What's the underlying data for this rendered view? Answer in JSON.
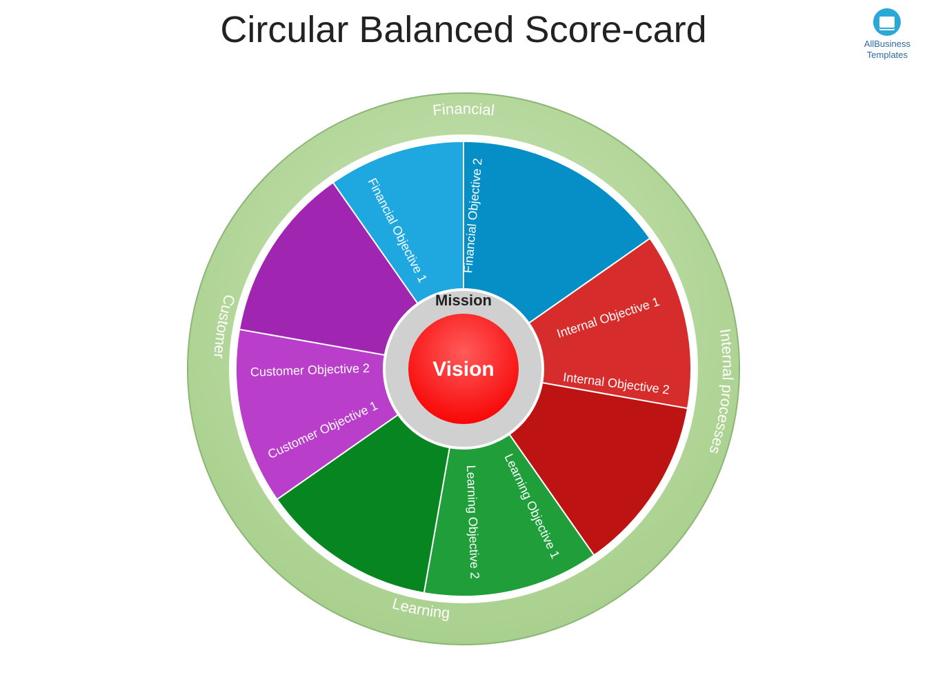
{
  "title": "Circular Balanced Score-card",
  "logo": {
    "line1": "AllBusiness",
    "line2": "Templates"
  },
  "center": {
    "mission": "Mission",
    "vision": "Vision"
  },
  "ring": {
    "outer_fill": "#a8d08d",
    "outer_stroke": "#8cb576",
    "background": "#ffffff",
    "center_ring_fill": "#d0d0d0",
    "center_circle_fill": "#f70000",
    "mission_color": "#222222",
    "vision_color": "#ffffff",
    "label_color": "#ffffff",
    "title_fontsize": 54,
    "ring_label_fontsize": 22,
    "objective_fontsize": 18,
    "mission_fontsize": 22,
    "vision_fontsize": 30
  },
  "perspectives": [
    {
      "key": "financial",
      "label": "Financial",
      "color": "#1fa8e0",
      "objectives": [
        "Financial Objective 1",
        "Financial Objective 2"
      ]
    },
    {
      "key": "internal",
      "label": "Internal processes",
      "color": "#d62c2c",
      "objectives": [
        "Internal Objective 1",
        "Internal Objective 2"
      ]
    },
    {
      "key": "learning",
      "label": "Learning",
      "color": "#1f9e3a",
      "objectives": [
        "Learning Objective 1",
        "Learning Objective 2"
      ]
    },
    {
      "key": "customer",
      "label": "Customer",
      "color": "#b93ec9",
      "objectives": [
        "Customer Objective 1",
        "Customer Objective 2"
      ]
    }
  ]
}
